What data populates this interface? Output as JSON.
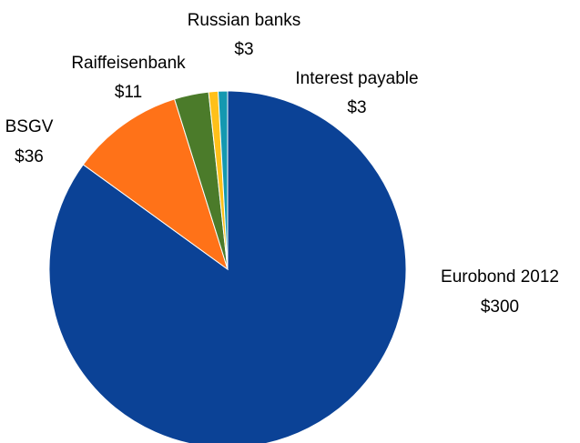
{
  "chart_data": {
    "type": "pie",
    "slices": [
      {
        "label": "Eurobond 2012",
        "value_label": "$300",
        "value": 300,
        "color": "#0b4296"
      },
      {
        "label": "BSGV",
        "value_label": "$36",
        "value": 36,
        "color": "#ff7218"
      },
      {
        "label": "Raiffeisenbank",
        "value_label": "$11",
        "value": 11,
        "color": "#4b7b2a"
      },
      {
        "label": "Russian banks",
        "value_label": "$3",
        "value": 3,
        "color": "#ffc01a"
      },
      {
        "label": "Interest payable",
        "value_label": "$3",
        "value": 3,
        "color": "#1498b0"
      }
    ]
  }
}
